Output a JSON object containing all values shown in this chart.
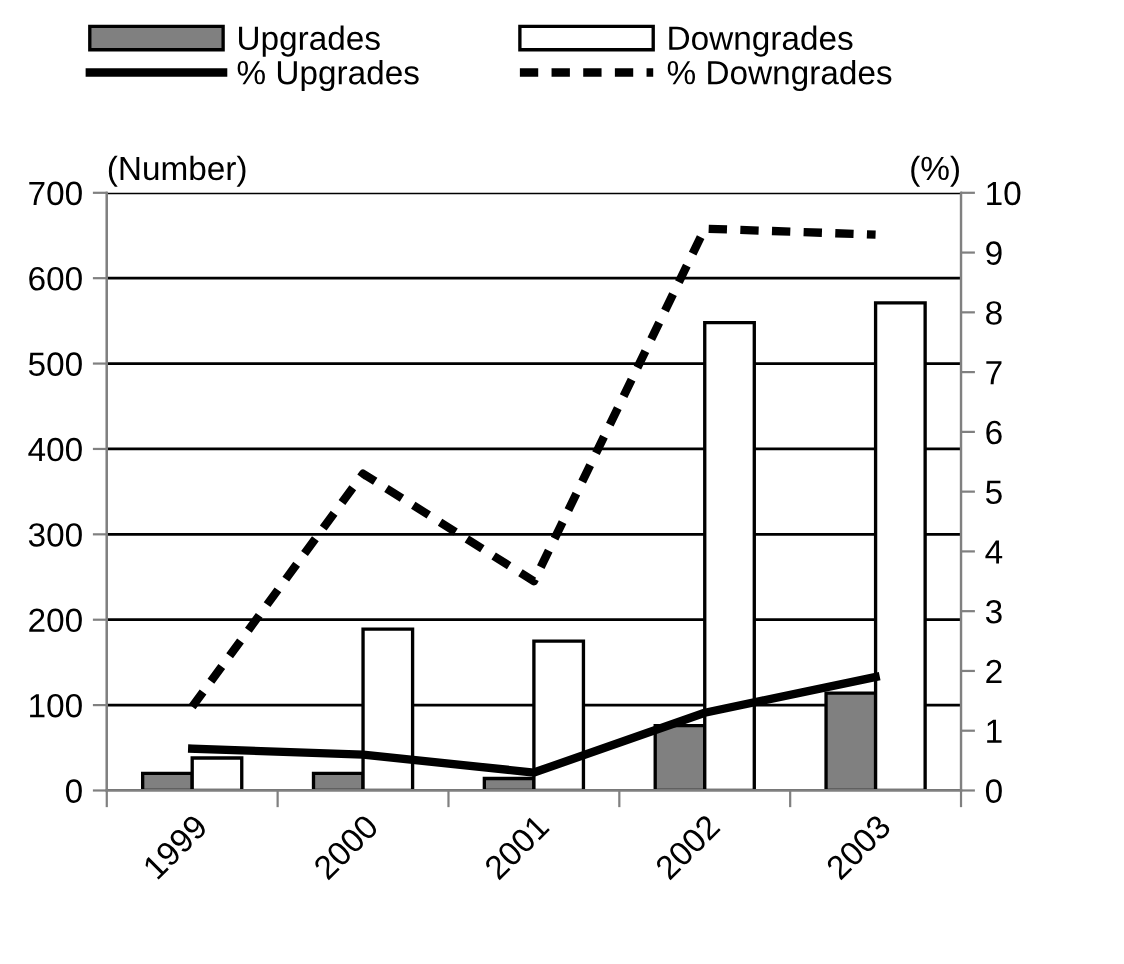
{
  "chart_data": {
    "type": "bar",
    "categories": [
      "1999",
      "2000",
      "2001",
      "2002",
      "2003"
    ],
    "ylabel": "(Number)",
    "y2label": "(%)",
    "series": [
      {
        "name": "Upgrades",
        "color": "#808080",
        "values": [
          20,
          20,
          14,
          76,
          114
        ]
      },
      {
        "name": "Downgrades",
        "color": "#ffffff",
        "values": [
          38,
          189,
          175,
          548,
          571
        ]
      },
      {
        "name": "% Upgrades",
        "type": "line",
        "axis": "y2",
        "color": "#000000",
        "line_style": "solid",
        "values": [
          0.7,
          0.6,
          0.3,
          1.3,
          1.9
        ]
      },
      {
        "name": "% Downgrades",
        "type": "line",
        "axis": "y2",
        "color": "#000000",
        "line_style": "dashed",
        "values": [
          1.4,
          5.3,
          3.5,
          9.4,
          9.3
        ]
      }
    ],
    "ylim": [
      0,
      700
    ],
    "yticks": [
      0,
      100,
      200,
      300,
      400,
      500,
      600,
      700
    ],
    "y2lim": [
      0,
      10
    ],
    "y2ticks": [
      0,
      1,
      2,
      3,
      4,
      5,
      6,
      7,
      8,
      9,
      10
    ],
    "grid": "y",
    "legend": "top",
    "marker": "none"
  }
}
